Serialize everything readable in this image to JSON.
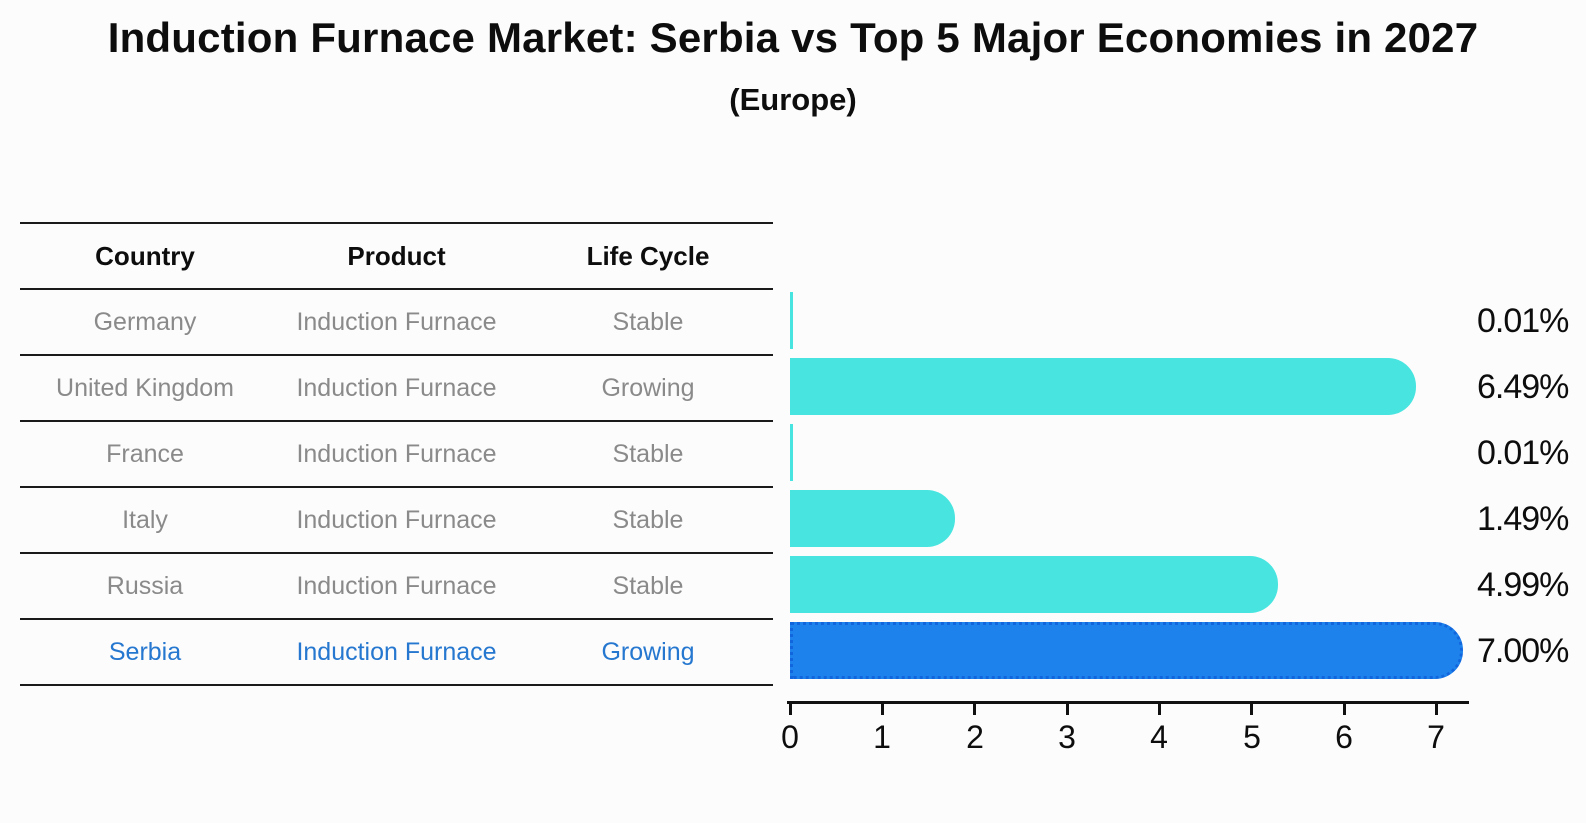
{
  "title": "Induction Furnace Market: Serbia vs Top 5 Major Economies in 2027",
  "subtitle": "(Europe)",
  "table": {
    "headers": [
      "Country",
      "Product",
      "Life Cycle"
    ],
    "rows": [
      {
        "country": "Germany",
        "product": "Induction Furnace",
        "life_cycle": "Stable",
        "highlight": false
      },
      {
        "country": "United Kingdom",
        "product": "Induction Furnace",
        "life_cycle": "Growing",
        "highlight": false
      },
      {
        "country": "France",
        "product": "Induction Furnace",
        "life_cycle": "Stable",
        "highlight": false
      },
      {
        "country": "Italy",
        "product": "Induction Furnace",
        "life_cycle": "Stable",
        "highlight": false
      },
      {
        "country": "Russia",
        "product": "Induction Furnace",
        "life_cycle": "Stable",
        "highlight": false
      },
      {
        "country": "Serbia",
        "product": "Induction Furnace",
        "life_cycle": "Growing",
        "highlight": true
      }
    ]
  },
  "chart_data": {
    "type": "bar",
    "orientation": "horizontal",
    "title": "Induction Furnace Market: Serbia vs Top 5 Major Economies in 2027",
    "subtitle": "(Europe)",
    "categories": [
      "Germany",
      "United Kingdom",
      "France",
      "Italy",
      "Russia",
      "Serbia"
    ],
    "values": [
      0.01,
      6.49,
      0.01,
      1.49,
      4.99,
      7.0
    ],
    "value_labels": [
      "0.01%",
      "6.49%",
      "0.01%",
      "1.49%",
      "4.99%",
      "7.00%"
    ],
    "x_ticks": [
      "0",
      "1",
      "2",
      "3",
      "4",
      "5",
      "6",
      "7"
    ],
    "xlim": [
      0,
      7.37
    ],
    "xlabel": "",
    "ylabel": "",
    "grid": false,
    "legend": false,
    "bar_color": "#48e5e0",
    "highlight_color": "#1e82ec",
    "highlight_index": 5
  },
  "colors": {
    "background": "#fcfcfc",
    "bar_teal": "#48e5e0",
    "bar_blue": "#1e82ec",
    "serbia_text": "#2577cf",
    "table_text": "#8a8a8a",
    "heading_text": "#0d0d0d",
    "line": "#1a1a1a"
  }
}
